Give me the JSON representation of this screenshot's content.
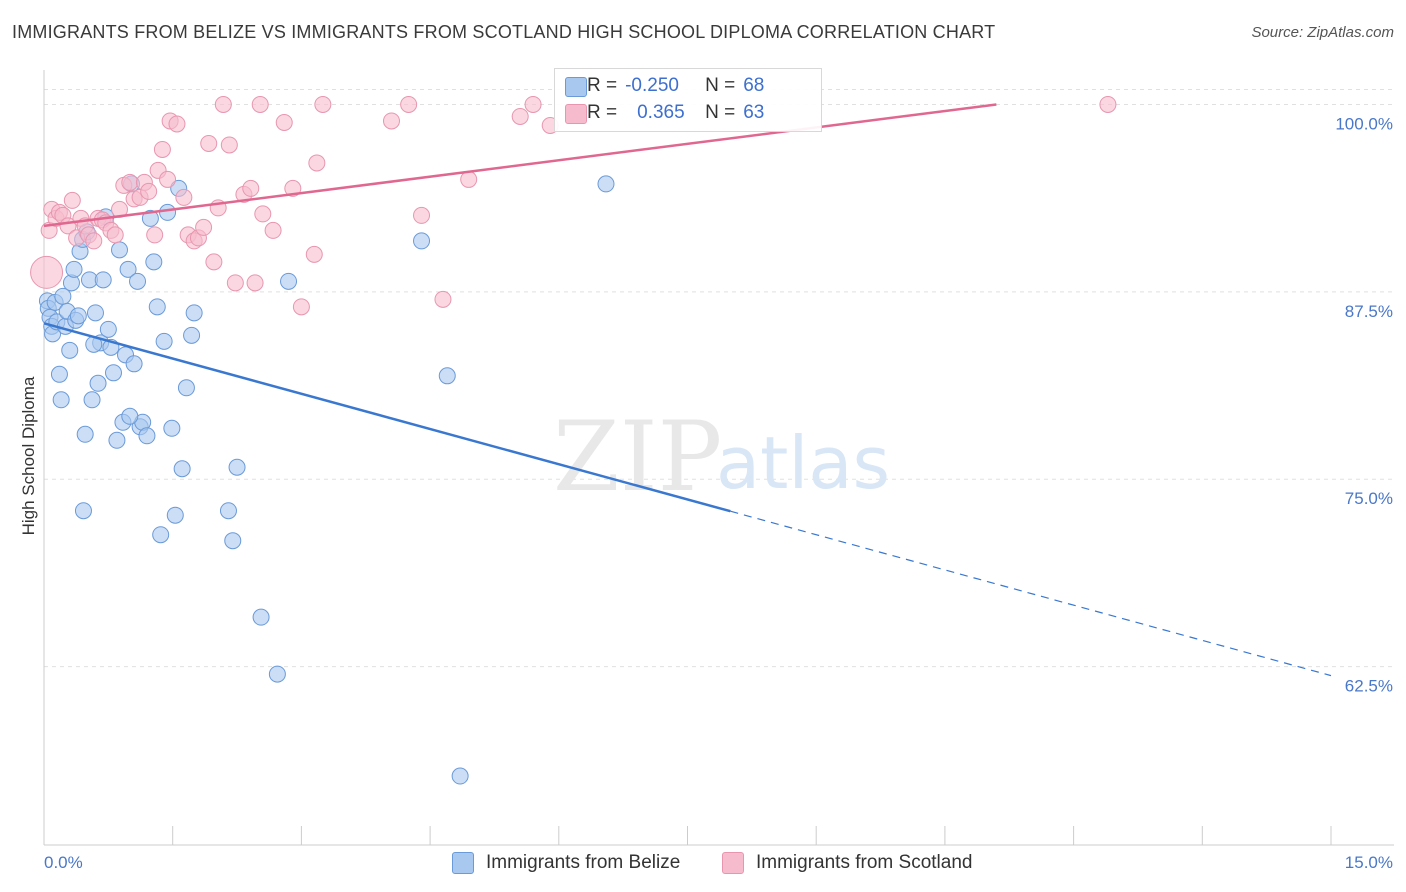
{
  "title": "IMMIGRANTS FROM BELIZE VS IMMIGRANTS FROM SCOTLAND HIGH SCHOOL DIPLOMA CORRELATION CHART",
  "source": "Source: ZipAtlas.com",
  "watermark": {
    "zip": "ZIP",
    "atlas": "atlas"
  },
  "legend": {
    "rows": [
      {
        "r_label": "R =",
        "r_value": "-0.250",
        "n_label": "N =",
        "n_value": "68"
      },
      {
        "r_label": "R =",
        "r_value": "0.365",
        "n_label": "N =",
        "n_value": "63"
      }
    ]
  },
  "bottom_legend": {
    "series1": "Immigrants from Belize",
    "series2": "Immigrants from Scotland"
  },
  "colors": {
    "belize_fill": "#a9c8f0",
    "belize_stroke": "#6a9ad8",
    "belize_line": "#3a78d0",
    "scotland_fill": "#f6bccd",
    "scotland_stroke": "#e896b0",
    "scotland_line": "#e06890",
    "tick_text": "#4a78c8",
    "grid": "#e0e0e0"
  },
  "chart_data": {
    "type": "scatter",
    "title": "IMMIGRANTS FROM BELIZE VS IMMIGRANTS FROM SCOTLAND HIGH SCHOOL DIPLOMA CORRELATION CHART",
    "xlabel": "",
    "ylabel": "High School Diploma",
    "xlim": [
      0,
      15
    ],
    "ylim": [
      50.6,
      102.3
    ],
    "x_tick_labels": [
      "0.0%",
      "15.0%"
    ],
    "y_ticks": [
      {
        "value": 62.5,
        "label": "62.5%"
      },
      {
        "value": 75.0,
        "label": "75.0%"
      },
      {
        "value": 87.5,
        "label": "87.5%"
      },
      {
        "value": 100.0,
        "label": "100.0%"
      }
    ],
    "series": [
      {
        "name": "Immigrants from Belize",
        "r": -0.25,
        "n": 68,
        "trend": {
          "x0": 0.0,
          "y0": 85.4,
          "x1": 15.0,
          "y1": 61.9,
          "solid_until_x": 8.0
        },
        "points": [
          [
            0.04,
            86.9
          ],
          [
            0.05,
            86.4
          ],
          [
            0.07,
            85.8
          ],
          [
            0.09,
            85.2
          ],
          [
            0.1,
            84.7
          ],
          [
            0.13,
            86.8
          ],
          [
            0.15,
            85.5
          ],
          [
            0.18,
            82.0
          ],
          [
            0.2,
            80.3
          ],
          [
            0.22,
            87.2
          ],
          [
            0.25,
            85.2
          ],
          [
            0.27,
            86.2
          ],
          [
            0.3,
            83.6
          ],
          [
            0.32,
            88.1
          ],
          [
            0.35,
            89.0
          ],
          [
            0.37,
            85.6
          ],
          [
            0.4,
            85.9
          ],
          [
            0.42,
            90.2
          ],
          [
            0.45,
            91.0
          ],
          [
            0.48,
            78.0
          ],
          [
            0.5,
            91.5
          ],
          [
            0.53,
            88.3
          ],
          [
            0.56,
            80.3
          ],
          [
            0.6,
            86.1
          ],
          [
            0.63,
            81.4
          ],
          [
            0.66,
            84.1
          ],
          [
            0.69,
            88.3
          ],
          [
            0.72,
            92.5
          ],
          [
            0.75,
            85.0
          ],
          [
            0.78,
            83.8
          ],
          [
            0.81,
            82.1
          ],
          [
            0.85,
            77.6
          ],
          [
            0.88,
            90.3
          ],
          [
            0.92,
            78.8
          ],
          [
            0.95,
            83.3
          ],
          [
            0.98,
            89.0
          ],
          [
            1.02,
            94.7
          ],
          [
            1.05,
            82.7
          ],
          [
            1.09,
            88.2
          ],
          [
            1.12,
            78.5
          ],
          [
            1.15,
            78.8
          ],
          [
            1.2,
            77.9
          ],
          [
            1.24,
            92.4
          ],
          [
            1.28,
            89.5
          ],
          [
            1.32,
            86.5
          ],
          [
            1.36,
            71.3
          ],
          [
            1.4,
            84.2
          ],
          [
            1.44,
            92.8
          ],
          [
            1.49,
            78.4
          ],
          [
            1.53,
            72.6
          ],
          [
            1.57,
            94.4
          ],
          [
            1.61,
            75.7
          ],
          [
            1.66,
            81.1
          ],
          [
            1.72,
            84.6
          ],
          [
            1.75,
            86.1
          ],
          [
            2.15,
            72.9
          ],
          [
            2.2,
            70.9
          ],
          [
            2.25,
            75.8
          ],
          [
            2.53,
            65.8
          ],
          [
            2.72,
            62.0
          ],
          [
            2.85,
            88.2
          ],
          [
            4.4,
            90.9
          ],
          [
            4.7,
            81.9
          ],
          [
            4.85,
            55.2
          ],
          [
            6.55,
            94.7
          ],
          [
            0.46,
            72.9
          ],
          [
            0.58,
            84.0
          ],
          [
            1.0,
            79.2
          ]
        ]
      },
      {
        "name": "Immigrants from Scotland",
        "r": 0.365,
        "n": 63,
        "trend": {
          "x0": 0.0,
          "y0": 91.9,
          "x1": 11.1,
          "y1": 100.0
        },
        "points": [
          [
            0.03,
            88.8
          ],
          [
            0.06,
            91.6
          ],
          [
            0.09,
            93.0
          ],
          [
            0.14,
            92.4
          ],
          [
            0.18,
            92.8
          ],
          [
            0.22,
            92.6
          ],
          [
            0.28,
            91.9
          ],
          [
            0.33,
            93.6
          ],
          [
            0.38,
            91.1
          ],
          [
            0.43,
            92.4
          ],
          [
            0.48,
            91.9
          ],
          [
            0.52,
            91.3
          ],
          [
            0.58,
            90.9
          ],
          [
            0.63,
            92.4
          ],
          [
            0.68,
            92.3
          ],
          [
            0.72,
            92.1
          ],
          [
            0.78,
            91.6
          ],
          [
            0.83,
            91.3
          ],
          [
            0.88,
            93.0
          ],
          [
            0.93,
            94.6
          ],
          [
            1.0,
            94.8
          ],
          [
            1.05,
            93.7
          ],
          [
            1.12,
            93.8
          ],
          [
            1.17,
            94.8
          ],
          [
            1.22,
            94.2
          ],
          [
            1.29,
            91.3
          ],
          [
            1.33,
            95.6
          ],
          [
            1.38,
            97.0
          ],
          [
            1.44,
            95.0
          ],
          [
            1.47,
            98.9
          ],
          [
            1.55,
            98.7
          ],
          [
            1.63,
            93.8
          ],
          [
            1.68,
            91.3
          ],
          [
            1.75,
            90.9
          ],
          [
            1.8,
            91.1
          ],
          [
            1.86,
            91.8
          ],
          [
            1.92,
            97.4
          ],
          [
            1.98,
            89.5
          ],
          [
            2.03,
            93.1
          ],
          [
            2.09,
            100.0
          ],
          [
            2.16,
            97.3
          ],
          [
            2.23,
            88.1
          ],
          [
            2.33,
            94.0
          ],
          [
            2.41,
            94.4
          ],
          [
            2.46,
            88.1
          ],
          [
            2.52,
            100.0
          ],
          [
            2.55,
            92.7
          ],
          [
            2.67,
            91.6
          ],
          [
            2.8,
            98.8
          ],
          [
            2.9,
            94.4
          ],
          [
            3.0,
            86.5
          ],
          [
            3.15,
            90.0
          ],
          [
            3.18,
            96.1
          ],
          [
            3.25,
            100.0
          ],
          [
            4.05,
            98.9
          ],
          [
            4.25,
            100.0
          ],
          [
            4.4,
            92.6
          ],
          [
            4.65,
            87.0
          ],
          [
            4.95,
            95.0
          ],
          [
            5.55,
            99.2
          ],
          [
            5.7,
            100.0
          ],
          [
            5.9,
            98.6
          ],
          [
            12.4,
            100.0
          ]
        ]
      }
    ]
  }
}
